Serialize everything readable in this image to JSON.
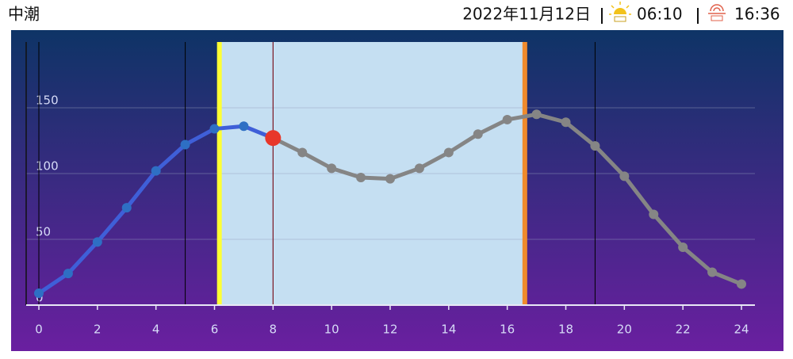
{
  "header": {
    "tide_type": "中潮",
    "date": "2022年11月12日",
    "sunrise": "06:10",
    "sunset": "16:36"
  },
  "chart_data": {
    "type": "line",
    "x": [
      0,
      1,
      2,
      3,
      4,
      5,
      6,
      7,
      8,
      9,
      10,
      11,
      12,
      13,
      14,
      15,
      16,
      17,
      18,
      19,
      20,
      21,
      22,
      23,
      24
    ],
    "series": [
      {
        "color": "#3f5fd8",
        "after_color": "#858585",
        "values": [
          9,
          24,
          48,
          74,
          102,
          122,
          134,
          136,
          127,
          116,
          104,
          97,
          96,
          104,
          116,
          130,
          141,
          145,
          139,
          121,
          98,
          69,
          44,
          25,
          16
        ]
      }
    ],
    "current_hour": 8,
    "current_color": "#e8372a",
    "night_lines": [
      5,
      19
    ],
    "xlim": [
      0,
      24
    ],
    "xticks": [
      0,
      2,
      4,
      6,
      8,
      10,
      12,
      14,
      16,
      18,
      20,
      22,
      24
    ],
    "ylim": [
      0,
      200
    ],
    "yticks": [
      0,
      50,
      100,
      150
    ],
    "grid": true,
    "daylight_color": "#c5dff2",
    "sunrise_color": "#ffff33",
    "sunset_color": "#f08a2c"
  }
}
